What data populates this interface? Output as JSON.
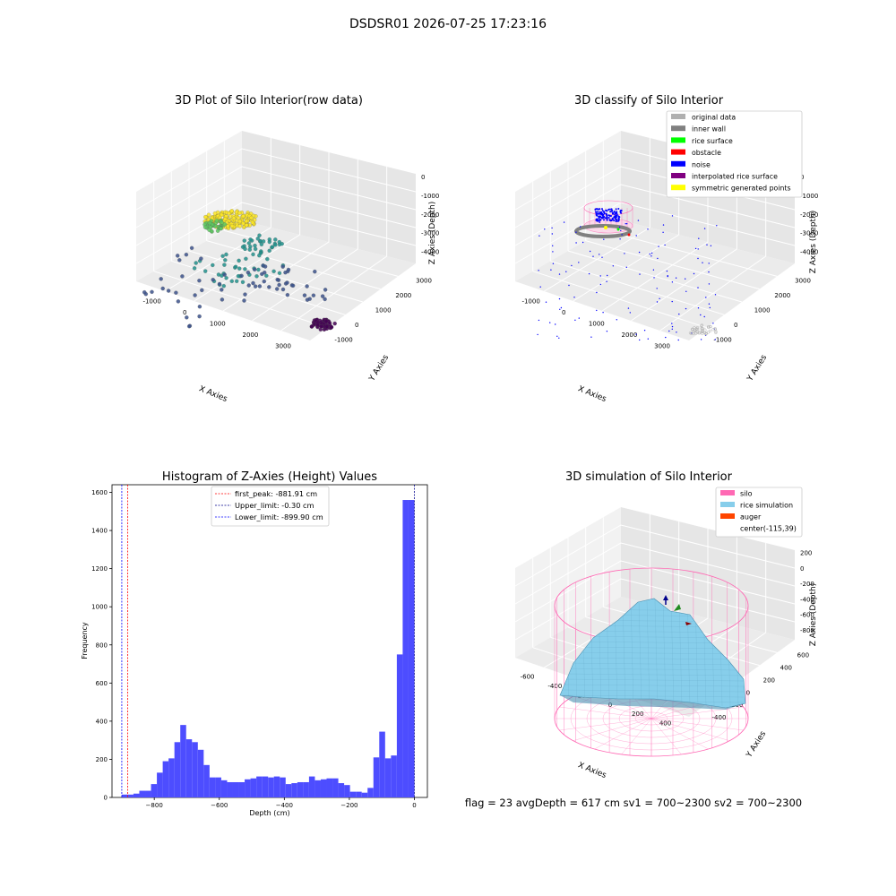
{
  "figure": {
    "suptitle": "DSDSR01 2026-07-25 17:23:16",
    "footer": "flag = 23   avgDepth = 617 cm   sv1 = 700~2300   sv2 = 700~2300"
  },
  "chart_data": [
    {
      "type": "scatter",
      "title": "3D Plot of Silo Interior(row data)",
      "xlabel": "X Axies",
      "ylabel": "Y Axies",
      "zlabel": "Z Axies (Depth)",
      "xticks": [
        "-1000",
        "0",
        "1000",
        "2000",
        "3000"
      ],
      "yticks": [
        "-1000",
        "0",
        "1000",
        "2000",
        "3000"
      ],
      "zticks": [
        "0",
        "-1000",
        "-2000",
        "-3000",
        "-4000"
      ],
      "xlim": [
        -1500,
        3000
      ],
      "ylim": [
        -1500,
        3500
      ],
      "zlim": [
        -4600,
        200
      ],
      "colormap": [
        "#440154",
        "#3b528b",
        "#21918c",
        "#5ec962",
        "#fde725"
      ]
    },
    {
      "type": "scatter",
      "title": "3D classify of Silo Interior",
      "xlabel": "X Axies",
      "ylabel": "Y Axies",
      "zlabel": "Z Axies (Depth)",
      "xticks": [
        "-1000",
        "0",
        "1000",
        "2000",
        "3000"
      ],
      "yticks": [
        "-1000",
        "0",
        "1000",
        "2000",
        "3000"
      ],
      "zticks": [
        "0",
        "-1000",
        "-2000",
        "-3000",
        "-4000"
      ],
      "legend_position": "upper-right",
      "legend": [
        {
          "label": "original data",
          "color": "#b0b0b0"
        },
        {
          "label": "inner wall",
          "color": "#808080"
        },
        {
          "label": "rice surface",
          "color": "#00ff00"
        },
        {
          "label": "obstacle",
          "color": "#ff0000"
        },
        {
          "label": "noise",
          "color": "#0000ff"
        },
        {
          "label": "interpolated rice surface",
          "color": "#800080"
        },
        {
          "label": "symmetric generated points",
          "color": "#ffff00"
        }
      ]
    },
    {
      "type": "bar",
      "title": "Histogram of Z-Axies (Height) Values",
      "xlabel": "Depth (cm)",
      "ylabel": "Frequency",
      "bar_color": "#4d4dff",
      "xlim": [
        -930,
        40
      ],
      "ylim": [
        0,
        1640
      ],
      "xticks": [
        -800,
        -600,
        -400,
        -200,
        0
      ],
      "yticks": [
        0,
        200,
        400,
        600,
        800,
        1000,
        1200,
        1400,
        1600
      ],
      "bin_start": -900,
      "bin_width": 18,
      "values": [
        15,
        15,
        20,
        35,
        35,
        70,
        130,
        190,
        205,
        290,
        380,
        305,
        290,
        250,
        170,
        105,
        105,
        90,
        80,
        80,
        80,
        95,
        100,
        110,
        110,
        105,
        110,
        105,
        70,
        75,
        80,
        80,
        110,
        90,
        95,
        100,
        100,
        75,
        65,
        30,
        30,
        25,
        50,
        210,
        345,
        205,
        220,
        750,
        1560,
        1560
      ],
      "lines": [
        {
          "label": "first_peak: -881.91 cm",
          "x": -881.91,
          "color": "#ff0000"
        },
        {
          "label": "Upper_limit: -0.30 cm",
          "x": -0.3,
          "color": "#00008b"
        },
        {
          "label": "Lower_limit: -899.90 cm",
          "x": -899.9,
          "color": "#0000ff"
        }
      ],
      "legend_position": "upper-center"
    },
    {
      "type": "surface",
      "title": "3D simulation of Silo Interior",
      "xlabel": "X Axies",
      "ylabel": "Y Axies",
      "zlabel": "Z Axies (Depth)",
      "xticks": [
        "-600",
        "-400",
        "-200",
        "0",
        "200",
        "400"
      ],
      "yticks": [
        "-400",
        "-200",
        "0",
        "200",
        "400",
        "600"
      ],
      "zticks": [
        "200",
        "0",
        "-200",
        "-400",
        "-600",
        "-800"
      ],
      "legend_position": "upper-right",
      "legend": [
        {
          "label": "silo",
          "color": "#ff69b4"
        },
        {
          "label": "rice simulation",
          "color": "#87ceeb"
        },
        {
          "label": "auger",
          "color": "#ff4500"
        },
        {
          "label": "center(-115,39)",
          "color": ""
        }
      ]
    }
  ]
}
